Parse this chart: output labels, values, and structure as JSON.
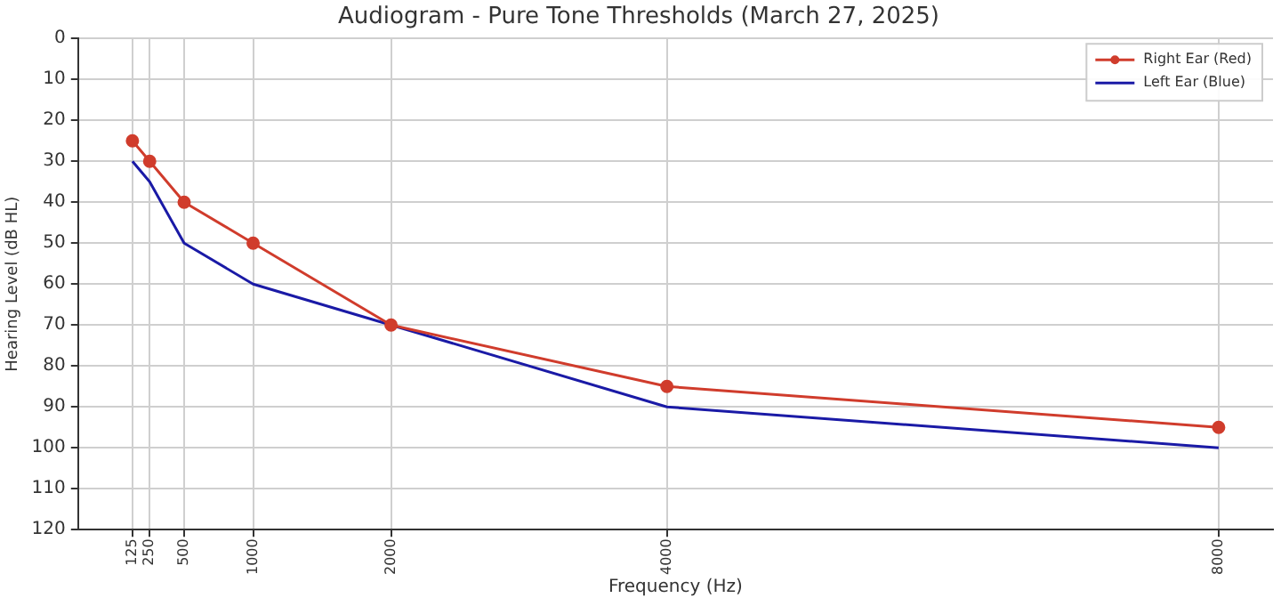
{
  "chart_data": {
    "type": "line",
    "title": "Audiogram - Pure Tone Thresholds (March 27, 2025)",
    "xlabel": "Frequency (Hz)",
    "ylabel": "Hearing Level (dB HL)",
    "x": [
      125,
      250,
      500,
      1000,
      2000,
      4000,
      8000
    ],
    "series": [
      {
        "name": "Right Ear (Red)",
        "color": "#d03c2c",
        "marker": "circle",
        "values": [
          25,
          30,
          40,
          50,
          70,
          85,
          95
        ]
      },
      {
        "name": "Left Ear (Blue)",
        "color": "#1a1aa6",
        "marker": "none",
        "values": [
          30,
          35,
          50,
          60,
          70,
          90,
          100
        ]
      }
    ],
    "xlim": [
      -269,
      8394
    ],
    "xticks": [
      125,
      250,
      500,
      1000,
      2000,
      4000,
      8000
    ],
    "ylim": [
      120,
      0
    ],
    "yticks": [
      0,
      10,
      20,
      30,
      40,
      50,
      60,
      70,
      80,
      90,
      100,
      110,
      120
    ],
    "grid": true,
    "legend": "top right",
    "line_style": "solid"
  }
}
